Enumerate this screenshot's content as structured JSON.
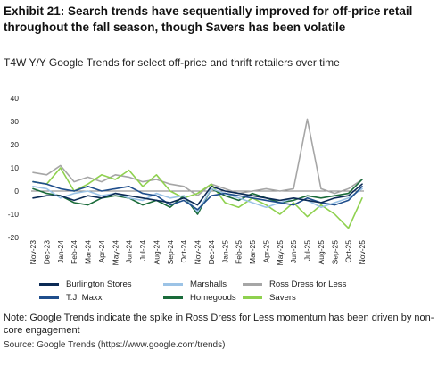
{
  "title": "Exhibit 21: Search trends have sequentially improved for off-price retail throughout the fall season, though Savers has been volatile",
  "subtitle": "T4W Y/Y Google Trends for select off-price and thrift retailers over time",
  "note": "Note: Google Trends indicate the spike in Ross Dress for Less momentum has been driven by non-core engagement",
  "source": "Source: Google Trends (https://www.google.com/trends)",
  "chart_data": {
    "type": "line",
    "title": "T4W Y/Y Google Trends for select off-price and thrift retailers over time",
    "xlabel": "",
    "ylabel": "",
    "ylim": [
      -20,
      40
    ],
    "yticks": [
      -20,
      -10,
      0,
      10,
      20,
      30,
      40
    ],
    "grid": false,
    "legend_position": "bottom",
    "x": [
      "Nov-23",
      "Dec-23",
      "Jan-24",
      "Feb-24",
      "Mar-24",
      "Apr-24",
      "May-24",
      "Jun-24",
      "Jul-24",
      "Aug-24",
      "Sep-24",
      "Oct-24",
      "Nov-24",
      "Dec-24",
      "Jan-25",
      "Feb-25",
      "Mar-25",
      "Apr-25",
      "May-25",
      "Jun-25",
      "Jul-25",
      "Aug-25",
      "Sep-25",
      "Oct-25",
      "Nov-25"
    ],
    "series": [
      {
        "name": "Burlington Stores",
        "color": "#0b2a55",
        "values": [
          -3,
          -2,
          -2,
          -4,
          -2,
          -3,
          -1,
          -2,
          -3,
          -4,
          -5,
          -3,
          -6,
          2,
          0,
          -1,
          -2,
          -3,
          -4,
          -3,
          -4,
          -5,
          -3,
          -2,
          3
        ]
      },
      {
        "name": "Marshalls",
        "color": "#9cc3e6",
        "values": [
          2,
          1,
          -3,
          -1,
          0,
          -2,
          -1,
          -3,
          -4,
          -1,
          -3,
          -2,
          -9,
          1,
          -1,
          -3,
          -5,
          -7,
          -5,
          -3,
          -4,
          -7,
          -5,
          -3,
          1
        ]
      },
      {
        "name": "Ross Dress for Less",
        "color": "#a6a6a6",
        "values": [
          8,
          7,
          11,
          4,
          6,
          4,
          7,
          6,
          4,
          5,
          3,
          2,
          -2,
          3,
          1,
          -1,
          0,
          1,
          0,
          1,
          31,
          1,
          -1,
          1,
          5
        ]
      },
      {
        "name": "T.J. Maxx",
        "color": "#1f4e8c",
        "values": [
          4,
          3,
          1,
          0,
          2,
          0,
          1,
          2,
          -1,
          -2,
          -6,
          -4,
          -8,
          -2,
          -1,
          -2,
          -3,
          -4,
          -5,
          -6,
          -3,
          -5,
          -6,
          -4,
          2
        ]
      },
      {
        "name": "Homegoods",
        "color": "#1a6b3a",
        "values": [
          1,
          -1,
          -2,
          -5,
          -6,
          -3,
          -2,
          -3,
          -6,
          -4,
          -7,
          -2,
          -10,
          1,
          -2,
          -4,
          -1,
          -3,
          -5,
          -4,
          -2,
          -3,
          -2,
          -1,
          5
        ]
      },
      {
        "name": "Savers",
        "color": "#8fd14f",
        "values": [
          4,
          3,
          10,
          0,
          3,
          7,
          5,
          9,
          2,
          7,
          0,
          -3,
          -1,
          3,
          -5,
          -7,
          -3,
          -6,
          -10,
          -5,
          -11,
          -6,
          -10,
          -16,
          -3
        ]
      }
    ]
  }
}
